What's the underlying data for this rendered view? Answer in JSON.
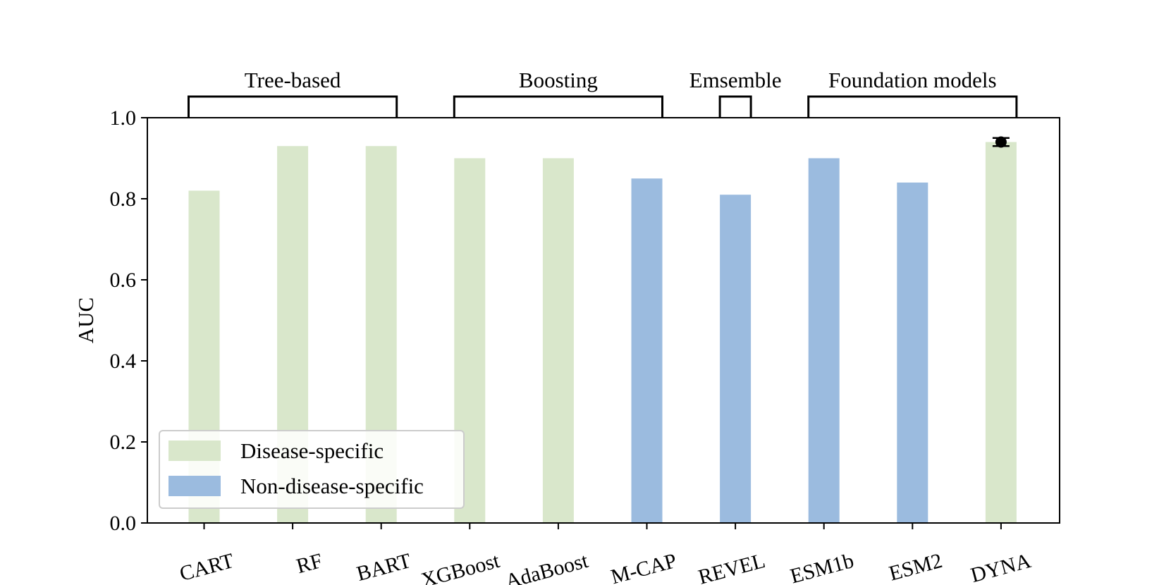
{
  "chart_data": {
    "type": "bar",
    "title": "",
    "xlabel": "",
    "ylabel": "AUC",
    "ylim": [
      0,
      1.0
    ],
    "yticks": [
      "0.0",
      "0.2",
      "0.4",
      "0.6",
      "0.8",
      "1.0"
    ],
    "grid": false,
    "legend_position": "lower-left",
    "categories": [
      "CART",
      "RF",
      "BART",
      "XGBoost",
      "AdaBoost",
      "M-CAP",
      "REVEL",
      "ESM1b",
      "ESM2",
      "DYNA"
    ],
    "values": [
      0.82,
      0.93,
      0.93,
      0.9,
      0.9,
      0.85,
      0.81,
      0.9,
      0.84,
      0.94
    ],
    "series_of_bar": [
      "disease",
      "disease",
      "disease",
      "disease",
      "disease",
      "non",
      "non",
      "non",
      "non",
      "disease"
    ],
    "series": [
      {
        "key": "disease",
        "name": "Disease-specific",
        "color": "#d9e7cb"
      },
      {
        "key": "non",
        "name": "Non-disease-specific",
        "color": "#9bbbdf"
      }
    ],
    "error_bar": {
      "category": "DYNA",
      "value": 0.94,
      "low": 0.93,
      "high": 0.95
    },
    "groups": [
      {
        "label": "Tree-based",
        "start": "CART",
        "end": "BART"
      },
      {
        "label": "Boosting",
        "start": "XGBoost",
        "end": "M-CAP"
      },
      {
        "label": "Emsemble",
        "start": "REVEL",
        "end": "REVEL"
      },
      {
        "label": "Foundation models",
        "start": "ESM1b",
        "end": "DYNA"
      }
    ]
  }
}
